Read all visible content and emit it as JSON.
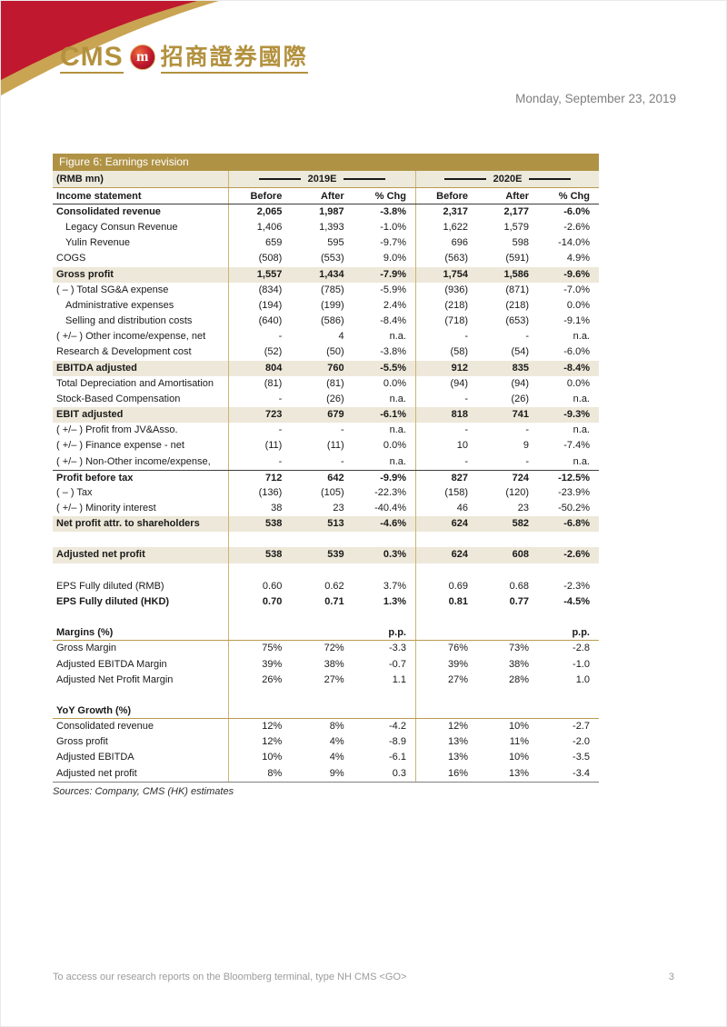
{
  "page": {
    "date": "Monday, September 23, 2019",
    "footer_note": "To access our research reports on the Bloomberg terminal, type NH CMS <GO>",
    "page_number": "3"
  },
  "logo": {
    "cms_text": "CMS",
    "badge_glyph": "m",
    "chinese_text": "招商證券國際"
  },
  "colors": {
    "brand_gold": "#b3913e",
    "brand_red": "#c0182f",
    "table_header_gold": "#b09245",
    "row_highlight_beige": "#ede8d9",
    "grid_line_tan": "#cdb472"
  },
  "figure": {
    "title": "Figure 6: Earnings revision",
    "unit_label": "(RMB mn)",
    "col_groups": [
      "2019E",
      "2020E"
    ],
    "header": {
      "label": "Income statement",
      "cols": [
        "Before",
        "After",
        "% Chg",
        "Before",
        "After",
        "% Chg"
      ]
    },
    "rows": [
      {
        "label": "Consolidated revenue",
        "style": "b",
        "values": [
          "2,065",
          "1,987",
          "-3.8%",
          "2,317",
          "2,177",
          "-6.0%"
        ]
      },
      {
        "label": "Legacy Consun Revenue",
        "style": "ind",
        "values": [
          "1,406",
          "1,393",
          "-1.0%",
          "1,622",
          "1,579",
          "-2.6%"
        ]
      },
      {
        "label": "Yulin Revenue",
        "style": "ind",
        "values": [
          "659",
          "595",
          "-9.7%",
          "696",
          "598",
          "-14.0%"
        ]
      },
      {
        "label": "COGS",
        "style": "",
        "values": [
          "(508)",
          "(553)",
          "9.0%",
          "(563)",
          "(591)",
          "4.9%"
        ]
      },
      {
        "label": "Gross profit",
        "style": "b hl",
        "values": [
          "1,557",
          "1,434",
          "-7.9%",
          "1,754",
          "1,586",
          "-9.6%"
        ]
      },
      {
        "label": "( – ) Total SG&A expense",
        "style": "",
        "values": [
          "(834)",
          "(785)",
          "-5.9%",
          "(936)",
          "(871)",
          "-7.0%"
        ]
      },
      {
        "label": "Administrative expenses",
        "style": "ind",
        "values": [
          "(194)",
          "(199)",
          "2.4%",
          "(218)",
          "(218)",
          "0.0%"
        ]
      },
      {
        "label": "Selling and distribution costs",
        "style": "ind",
        "values": [
          "(640)",
          "(586)",
          "-8.4%",
          "(718)",
          "(653)",
          "-9.1%"
        ]
      },
      {
        "label": "( +/– ) Other income/expense, net",
        "style": "",
        "values": [
          "-",
          "4",
          "n.a.",
          "-",
          "-",
          "n.a."
        ]
      },
      {
        "label": "Research & Development cost",
        "style": "",
        "values": [
          "(52)",
          "(50)",
          "-3.8%",
          "(58)",
          "(54)",
          "-6.0%"
        ]
      },
      {
        "label": "EBITDA adjusted",
        "style": "b hl",
        "values": [
          "804",
          "760",
          "-5.5%",
          "912",
          "835",
          "-8.4%"
        ]
      },
      {
        "label": "Total Depreciation and Amortisation",
        "style": "",
        "values": [
          "(81)",
          "(81)",
          "0.0%",
          "(94)",
          "(94)",
          "0.0%"
        ]
      },
      {
        "label": "Stock-Based Compensation",
        "style": "",
        "values": [
          "-",
          "(26)",
          "n.a.",
          "-",
          "(26)",
          "n.a."
        ]
      },
      {
        "label": "EBIT adjusted",
        "style": "b hl",
        "values": [
          "723",
          "679",
          "-6.1%",
          "818",
          "741",
          "-9.3%"
        ]
      },
      {
        "label": "( +/– ) Profit from JV&Asso.",
        "style": "",
        "values": [
          "-",
          "-",
          "n.a.",
          "-",
          "-",
          "n.a."
        ]
      },
      {
        "label": "( +/– ) Finance expense - net",
        "style": "",
        "values": [
          "(11)",
          "(11)",
          "0.0%",
          "10",
          "9",
          "-7.4%"
        ]
      },
      {
        "label": "( +/– ) Non-Other income/expense,",
        "style": "",
        "values": [
          "-",
          "-",
          "n.a.",
          "-",
          "-",
          "n.a."
        ]
      },
      {
        "label": "Profit before tax",
        "style": "b bt",
        "values": [
          "712",
          "642",
          "-9.9%",
          "827",
          "724",
          "-12.5%"
        ]
      },
      {
        "label": "( – ) Tax",
        "style": "",
        "values": [
          "(136)",
          "(105)",
          "-22.3%",
          "(158)",
          "(120)",
          "-23.9%"
        ]
      },
      {
        "label": "( +/– ) Minority interest",
        "style": "",
        "values": [
          "38",
          "23",
          "-40.4%",
          "46",
          "23",
          "-50.2%"
        ]
      },
      {
        "label": "Net profit attr. to shareholders",
        "style": "b hl",
        "values": [
          "538",
          "513",
          "-4.6%",
          "624",
          "582",
          "-6.8%"
        ]
      },
      {
        "label": "",
        "style": "",
        "values": [
          "",
          "",
          "",
          "",
          "",
          ""
        ]
      },
      {
        "label": "Adjusted net profit",
        "style": "b hl",
        "values": [
          "538",
          "539",
          "0.3%",
          "624",
          "608",
          "-2.6%"
        ]
      },
      {
        "label": "",
        "style": "",
        "values": [
          "",
          "",
          "",
          "",
          "",
          ""
        ]
      },
      {
        "label": "EPS Fully diluted (RMB)",
        "style": "",
        "values": [
          "0.60",
          "0.62",
          "3.7%",
          "0.69",
          "0.68",
          "-2.3%"
        ]
      },
      {
        "label": "EPS Fully diluted (HKD)",
        "style": "b",
        "values": [
          "0.70",
          "0.71",
          "1.3%",
          "0.81",
          "0.77",
          "-4.5%"
        ]
      },
      {
        "label": "",
        "style": "",
        "values": [
          "",
          "",
          "",
          "",
          "",
          ""
        ]
      },
      {
        "label": "Margins (%)",
        "style": "b bgold",
        "values": [
          "",
          "",
          "p.p.",
          "",
          "",
          "p.p."
        ]
      },
      {
        "label": "Gross Margin",
        "style": "",
        "values": [
          "75%",
          "72%",
          "-3.3",
          "76%",
          "73%",
          "-2.8"
        ]
      },
      {
        "label": "Adjusted EBITDA Margin",
        "style": "",
        "values": [
          "39%",
          "38%",
          "-0.7",
          "39%",
          "38%",
          "-1.0"
        ]
      },
      {
        "label": "Adjusted Net Profit Margin",
        "style": "",
        "values": [
          "26%",
          "27%",
          "1.1",
          "27%",
          "28%",
          "1.0"
        ]
      },
      {
        "label": "",
        "style": "",
        "values": [
          "",
          "",
          "",
          "",
          "",
          ""
        ]
      },
      {
        "label": "YoY Growth (%)",
        "style": "b bgold",
        "values": [
          "",
          "",
          "",
          "",
          "",
          ""
        ]
      },
      {
        "label": "Consolidated revenue",
        "style": "",
        "values": [
          "12%",
          "8%",
          "-4.2",
          "12%",
          "10%",
          "-2.7"
        ]
      },
      {
        "label": "Gross profit",
        "style": "",
        "values": [
          "12%",
          "4%",
          "-8.9",
          "13%",
          "11%",
          "-2.0"
        ]
      },
      {
        "label": "Adjusted EBITDA",
        "style": "",
        "values": [
          "10%",
          "4%",
          "-6.1",
          "13%",
          "10%",
          "-3.5"
        ]
      },
      {
        "label": "Adjusted net profit",
        "style": "",
        "values": [
          "8%",
          "9%",
          "0.3",
          "16%",
          "13%",
          "-3.4"
        ]
      }
    ],
    "sources": "Sources: Company, CMS (HK) estimates"
  }
}
